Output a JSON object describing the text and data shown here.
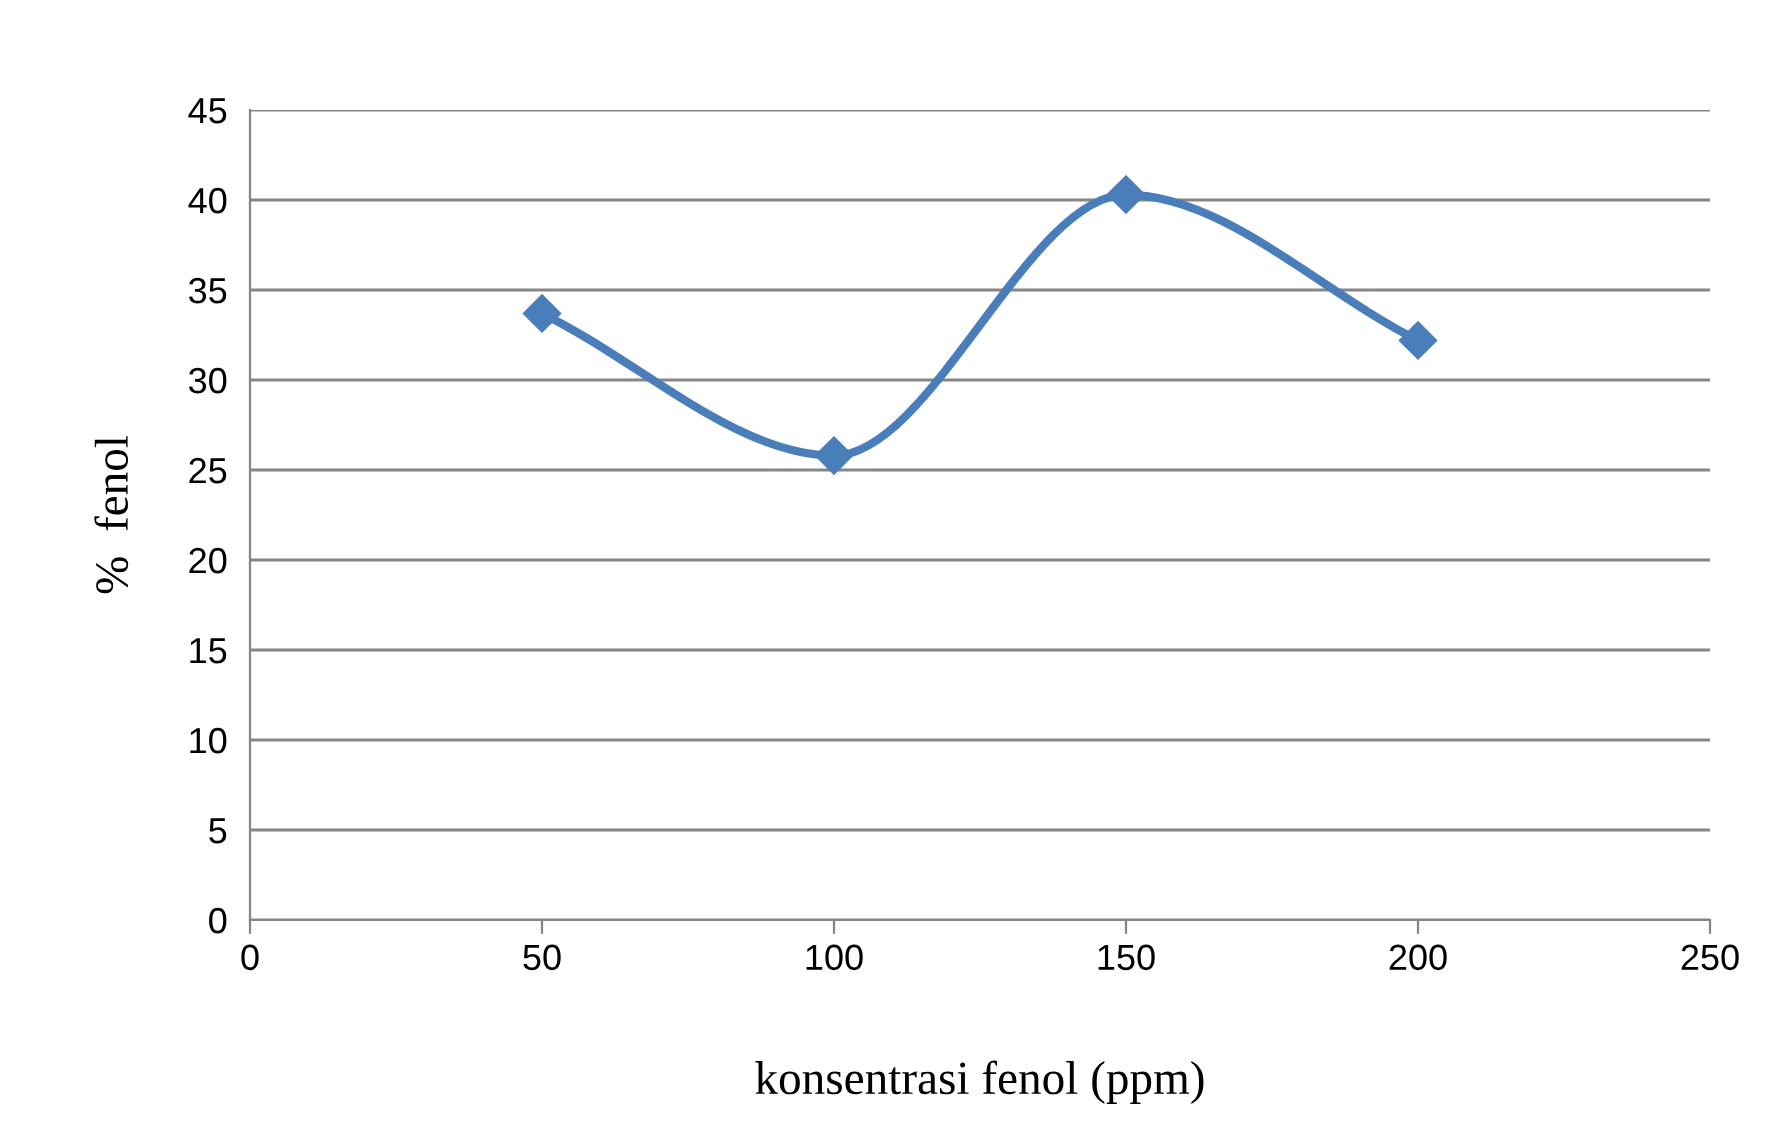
{
  "chart_data": {
    "type": "line",
    "xlabel": "konsentrasi fenol (ppm)",
    "ylabel": "%  fenol",
    "x": [
      50,
      100,
      150,
      200
    ],
    "series": [
      {
        "color": "#4a7ebb",
        "values": [
          33.7,
          25.8,
          40.3,
          32.2
        ]
      }
    ],
    "xlim": [
      0,
      250
    ],
    "xticks": [
      0,
      50,
      100,
      150,
      200,
      250
    ],
    "ylim": [
      0,
      45
    ],
    "yticks": [
      0,
      5,
      10,
      15,
      20,
      25,
      30,
      35,
      40,
      45
    ],
    "grid": "y",
    "marker": "diamond",
    "line_style": "solid"
  }
}
